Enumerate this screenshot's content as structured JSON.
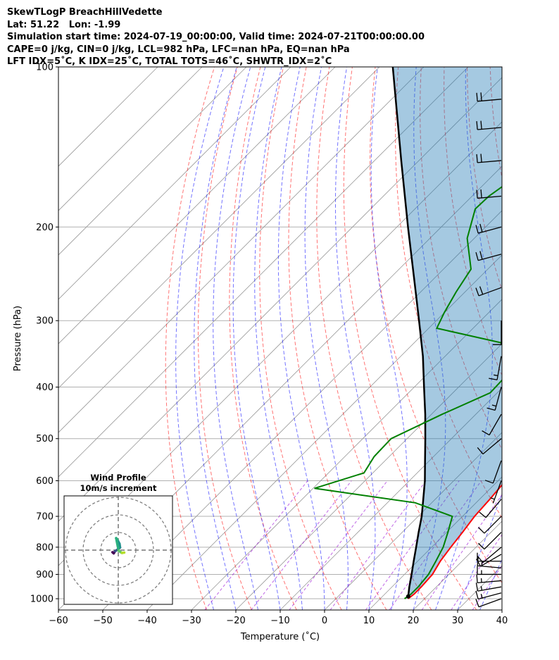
{
  "header": {
    "line1": "SkewTLogP BreachHillVedette",
    "line2": "Lat: 51.22   Lon: -1.99",
    "line3": "Simulation start time: 2024-07-19_00:00:00, Valid time: 2024-07-21T00:00:00.00",
    "line4": "CAPE=0 j/kg, CIN=0 j/kg, LCL=982 hPa, LFC=nan hPa, EQ=nan hPa",
    "line5": "LFT IDX=5˚C, K IDX=25˚C, TOTAL TOTS=46˚C, SHWTR_IDX=2˚C"
  },
  "chart_data": {
    "type": "skew-t log-p",
    "xlabel": "Temperature (˚C)",
    "ylabel": "Pressure (hPa)",
    "xlim": [
      -60,
      40
    ],
    "ylim": [
      1050,
      100
    ],
    "x_ticks": [
      "−60",
      "−50",
      "−40",
      "−30",
      "−20",
      "−10",
      "0",
      "10",
      "20",
      "30",
      "40"
    ],
    "x_tick_values": [
      -60,
      -50,
      -40,
      -30,
      -20,
      -10,
      0,
      10,
      20,
      30,
      40
    ],
    "y_ticks": [
      "1000",
      "900",
      "800",
      "700",
      "600",
      "500",
      "400",
      "300",
      "200",
      "100"
    ],
    "y_tick_values": [
      1000,
      900,
      800,
      700,
      600,
      500,
      400,
      300,
      200,
      100
    ],
    "colors": {
      "temperature": "#ff0000",
      "dewpoint": "#008000",
      "parcel": "#000000",
      "cape_fill": "#1f77b4",
      "dry_adiabat": "#ff0000",
      "moist_adiabat": "#0000ff",
      "mixing_ratio": "#9400d3",
      "isotherm": "#808080"
    },
    "series": [
      {
        "name": "temperature",
        "points": [
          [
            1000,
            16.3
          ],
          [
            980,
            16.6
          ],
          [
            950,
            16.6
          ],
          [
            900,
            16.3
          ],
          [
            850,
            15.1
          ],
          [
            800,
            14.3
          ],
          [
            750,
            13.6
          ],
          [
            700,
            12.7
          ],
          [
            650,
            12.3
          ],
          [
            600,
            11.7
          ],
          [
            550,
            9.9
          ],
          [
            500,
            7.8
          ],
          [
            450,
            3.5
          ],
          [
            400,
            -1.6
          ],
          [
            350,
            -6.5
          ],
          [
            320,
            -9.0
          ],
          [
            300,
            -12.3
          ],
          [
            270,
            -17.3
          ],
          [
            240,
            -23.3
          ],
          [
            210,
            -31.3
          ],
          [
            200,
            -33.3
          ],
          [
            175,
            -40.3
          ],
          [
            150,
            -44.6
          ],
          [
            125,
            -49.6
          ],
          [
            110,
            -52.6
          ],
          [
            100,
            -55.0
          ]
        ]
      },
      {
        "name": "dewpoint",
        "points": [
          [
            1000,
            15.5
          ],
          [
            980,
            15.9
          ],
          [
            950,
            15.9
          ],
          [
            900,
            15.4
          ],
          [
            850,
            14.1
          ],
          [
            800,
            12.6
          ],
          [
            750,
            10.3
          ],
          [
            700,
            7.7
          ],
          [
            660,
            -3.7
          ],
          [
            620,
            -29.7
          ],
          [
            580,
            -22.0
          ],
          [
            540,
            -23.4
          ],
          [
            500,
            -23.6
          ],
          [
            450,
            -17.6
          ],
          [
            410,
            -11.6
          ],
          [
            385,
            -11.8
          ],
          [
            355,
            -14.6
          ],
          [
            330,
            -20.5
          ],
          [
            310,
            -38.2
          ],
          [
            290,
            -40.0
          ],
          [
            265,
            -42.0
          ],
          [
            240,
            -43.8
          ],
          [
            210,
            -51.6
          ],
          [
            185,
            -56.4
          ],
          [
            175,
            -56.2
          ],
          [
            150,
            -53.0
          ],
          [
            125,
            -50.5
          ],
          [
            100,
            -47.0
          ]
        ]
      },
      {
        "name": "parcel",
        "points": [
          [
            990,
            15.8
          ],
          [
            950,
            13.9
          ],
          [
            900,
            11.6
          ],
          [
            850,
            9.1
          ],
          [
            800,
            6.5
          ],
          [
            750,
            3.7
          ],
          [
            700,
            0.8
          ],
          [
            650,
            -2.7
          ],
          [
            600,
            -6.5
          ],
          [
            550,
            -11.0
          ],
          [
            500,
            -15.9
          ],
          [
            450,
            -21.4
          ],
          [
            400,
            -27.8
          ],
          [
            350,
            -35.0
          ],
          [
            300,
            -43.9
          ],
          [
            250,
            -54.5
          ],
          [
            200,
            -67.5
          ],
          [
            150,
            -84.0
          ],
          [
            100,
            -107.0
          ]
        ]
      }
    ],
    "wind_barbs": [
      {
        "p": 1000,
        "dir": 250,
        "kt": 10
      },
      {
        "p": 975,
        "dir": 255,
        "kt": 15
      },
      {
        "p": 950,
        "dir": 260,
        "kt": 15
      },
      {
        "p": 925,
        "dir": 265,
        "kt": 15
      },
      {
        "p": 900,
        "dir": 270,
        "kt": 15
      },
      {
        "p": 875,
        "dir": 275,
        "kt": 15
      },
      {
        "p": 850,
        "dir": 270,
        "kt": 10
      },
      {
        "p": 825,
        "dir": 240,
        "kt": 10
      },
      {
        "p": 800,
        "dir": 230,
        "kt": 10
      },
      {
        "p": 750,
        "dir": 225,
        "kt": 10
      },
      {
        "p": 700,
        "dir": 225,
        "kt": 10
      },
      {
        "p": 650,
        "dir": 220,
        "kt": 10
      },
      {
        "p": 600,
        "dir": 200,
        "kt": 5
      },
      {
        "p": 550,
        "dir": 200,
        "kt": 10
      },
      {
        "p": 500,
        "dir": 230,
        "kt": 10
      },
      {
        "p": 450,
        "dir": 210,
        "kt": 10
      },
      {
        "p": 400,
        "dir": 195,
        "kt": 15
      },
      {
        "p": 350,
        "dir": 190,
        "kt": 15
      },
      {
        "p": 300,
        "dir": 180,
        "kt": 10
      },
      {
        "p": 260,
        "dir": 250,
        "kt": 20
      },
      {
        "p": 225,
        "dir": 255,
        "kt": 20
      },
      {
        "p": 200,
        "dir": 255,
        "kt": 20
      },
      {
        "p": 175,
        "dir": 265,
        "kt": 20
      },
      {
        "p": 150,
        "dir": 265,
        "kt": 20
      },
      {
        "p": 130,
        "dir": 265,
        "kt": 20
      },
      {
        "p": 115,
        "dir": 265,
        "kt": 20
      }
    ],
    "hodograph": {
      "title": "Wind Profile",
      "subtitle": "10m/s increment",
      "ring_spacing_ms": 10,
      "colors": [
        "#440154",
        "#3b528b",
        "#21918c",
        "#2ab07f",
        "#5ec962",
        "#b5de2b"
      ],
      "points": [
        [
          -3.3,
          -1.2
        ],
        [
          -2.6,
          -1.8
        ],
        [
          -1.8,
          -0.6
        ],
        [
          -0.5,
          0.2
        ],
        [
          1.0,
          1.5
        ],
        [
          0.7,
          3.6
        ],
        [
          -0.5,
          5.9
        ],
        [
          -1.2,
          6.8
        ],
        [
          0.2,
          -0.3
        ],
        [
          1.3,
          -1.1
        ],
        [
          2.1,
          -1.6
        ],
        [
          3.4,
          -1.4
        ]
      ]
    }
  }
}
